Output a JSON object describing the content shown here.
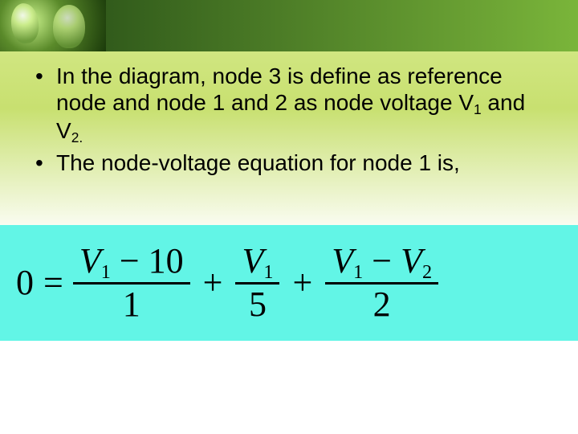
{
  "slide": {
    "background_gradient": [
      "#d8eb8f",
      "#c8e070",
      "#ffffff"
    ],
    "header_gradient": [
      "#0a2808",
      "#2a5218",
      "#7ab53a"
    ],
    "header_image": "lightbulbs"
  },
  "bullets": [
    {
      "pre": "In the diagram, node 3 is define as reference node and node 1 and 2 as node voltage V",
      "sub1": "1",
      "mid": " and V",
      "sub2": "2.",
      "post": ""
    },
    {
      "pre": "The node-voltage equation for node 1 is,",
      "sub1": "",
      "mid": "",
      "sub2": "",
      "post": ""
    }
  ],
  "equation": {
    "box_background": "#62f5e6",
    "lhs": "0",
    "eq": "=",
    "plus": "+",
    "terms": [
      {
        "num_var1": "V",
        "num_sub1": "1",
        "num_op": " − ",
        "num_rhs": "10",
        "den": "1"
      },
      {
        "num_var1": "V",
        "num_sub1": "1",
        "num_op": "",
        "num_rhs": "",
        "den": "5"
      },
      {
        "num_var1": "V",
        "num_sub1": "1",
        "num_op": " − ",
        "num_var2": "V",
        "num_sub2": "2",
        "den": "2"
      }
    ],
    "font_family": "Times New Roman",
    "font_size_pt": 33
  }
}
